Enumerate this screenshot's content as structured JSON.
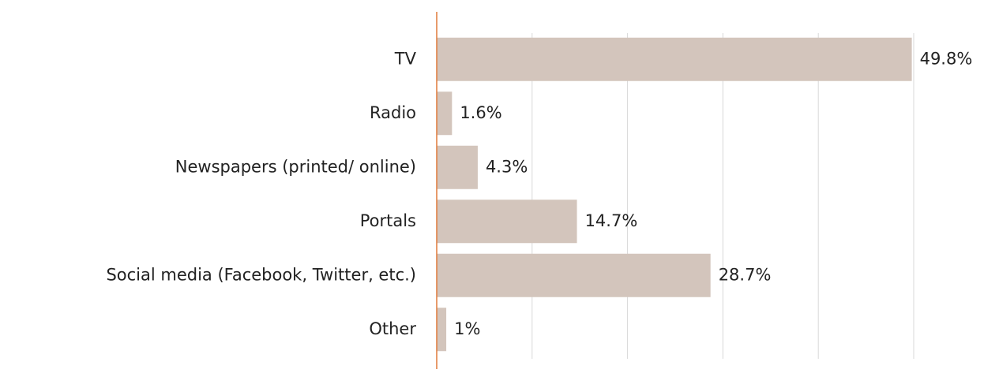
{
  "chart_data": {
    "type": "bar",
    "orientation": "horizontal",
    "categories": [
      "TV",
      "Radio",
      "Newspapers (printed/ online)",
      "Portals",
      "Social media (Facebook, Twitter, etc.)",
      "Other"
    ],
    "values": [
      49.8,
      1.6,
      4.3,
      14.7,
      28.7,
      1
    ],
    "value_labels": [
      "49.8%",
      "1.6%",
      "4.3%",
      "14.7%",
      "28.7%",
      "1%"
    ],
    "color": "#d3c5bc",
    "axis_color": "#e07a3a",
    "xlim": [
      0,
      50
    ],
    "xticks": [
      0,
      10,
      20,
      30,
      40,
      50
    ],
    "grid": true
  }
}
